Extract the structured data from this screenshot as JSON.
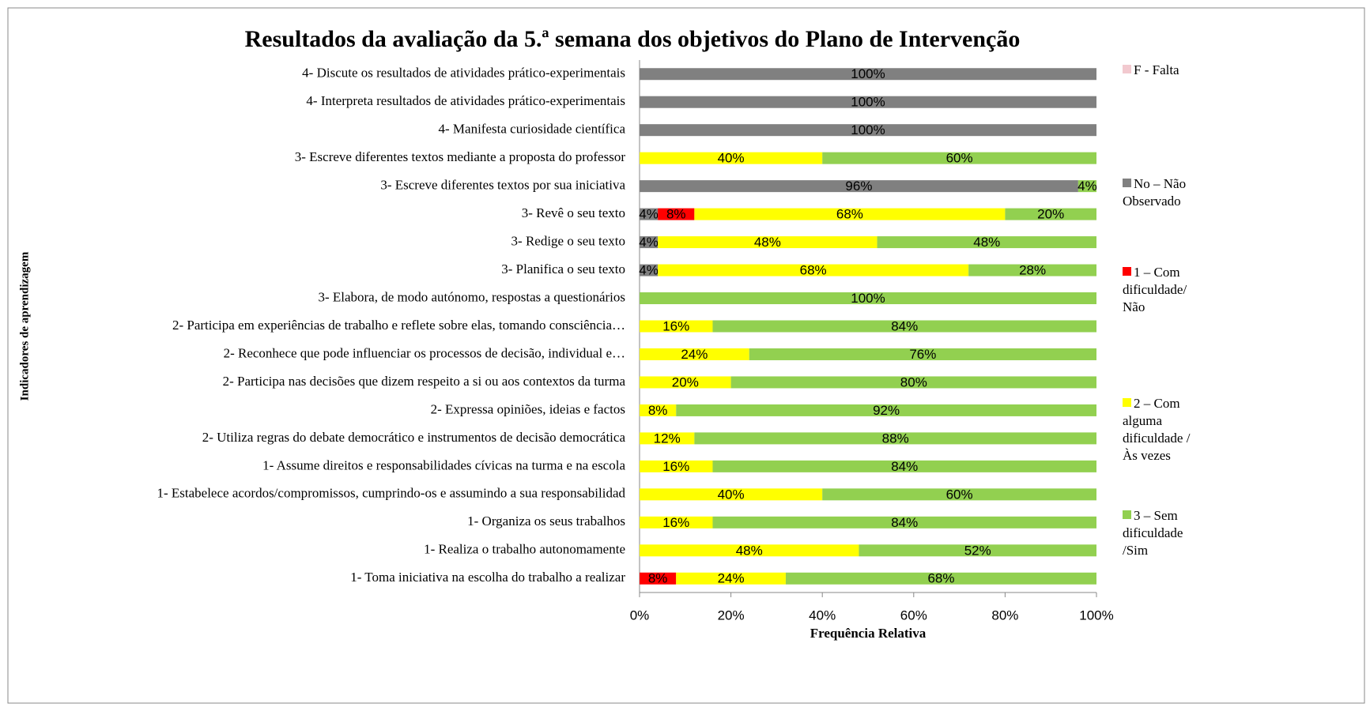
{
  "chart_data": {
    "type": "stacked-barh",
    "title": "Resultados da avaliação da 5.ª semana dos objetivos do Plano de Intervenção",
    "xlabel": "Frequência Relativa",
    "ylabel": "Indicadores de aprendizagem",
    "categories": [
      "4- Discute os resultados de atividades prático-experimentais",
      "4- Interpreta resultados de atividades prático-experimentais",
      "4- Manifesta curiosidade científica",
      "3- Escreve diferentes textos mediante a proposta do professor",
      "3- Escreve diferentes textos por sua iniciativa",
      "3- Revê o seu texto",
      "3- Redige o seu texto",
      "3- Planifica o seu texto",
      "3- Elabora, de modo autónomo, respostas a questionários",
      "2- Participa em experiências de trabalho e reflete sobre elas, tomando consciência…",
      "2- Reconhece que pode influenciar os processos de decisão, individual e…",
      "2- Participa nas decisões que dizem respeito a si ou aos contextos da turma",
      "2- Expressa opiniões, ideias e factos",
      "2- Utiliza regras do debate democrático e instrumentos de decisão democrática",
      "1- Assume direitos e responsabilidades cívicas na turma e na escola",
      "1- Estabelece acordos/compromissos, cumprindo-os e assumindo a sua responsabilidad",
      "1- Organiza os seus trabalhos",
      "1- Realiza o trabalho autonomamente",
      "1- Toma iniciativa na escolha do trabalho a realizar"
    ],
    "series": [
      {
        "name": "F - Falta",
        "color": "#f2c9cf",
        "values": [
          0,
          0,
          0,
          0,
          0,
          0,
          0,
          0,
          0,
          0,
          0,
          0,
          0,
          0,
          0,
          0,
          0,
          0,
          0
        ],
        "value_labels": [
          null,
          null,
          null,
          null,
          null,
          null,
          null,
          null,
          null,
          null,
          null,
          null,
          null,
          null,
          null,
          null,
          null,
          null,
          null
        ]
      },
      {
        "name": "No – Não Observado",
        "color": "#808080",
        "values": [
          100,
          100,
          100,
          0,
          96,
          4,
          4,
          4,
          0,
          0,
          0,
          0,
          0,
          0,
          0,
          0,
          0,
          0,
          0
        ],
        "value_labels": [
          "100%",
          "100%",
          "100%",
          null,
          "96%",
          "4%",
          "4%",
          "4%",
          null,
          null,
          null,
          null,
          null,
          null,
          null,
          null,
          null,
          null,
          null
        ]
      },
      {
        "name": "1 – Com dificuldade/ Não",
        "color": "#ff0000",
        "values": [
          0,
          0,
          0,
          0,
          0,
          8,
          0,
          0,
          0,
          0,
          0,
          0,
          0,
          0,
          0,
          0,
          0,
          0,
          8
        ],
        "value_labels": [
          null,
          null,
          null,
          null,
          null,
          "8%",
          null,
          null,
          null,
          null,
          null,
          null,
          null,
          null,
          null,
          null,
          null,
          null,
          "8%"
        ]
      },
      {
        "name": "2 – Com alguma dificuldade / Às vezes",
        "color": "#ffff00",
        "values": [
          0,
          0,
          0,
          40,
          0,
          68,
          48,
          68,
          0,
          16,
          24,
          20,
          8,
          12,
          16,
          40,
          16,
          48,
          24
        ],
        "value_labels": [
          null,
          null,
          null,
          "40%",
          null,
          "68%",
          "48%",
          "68%",
          null,
          "16%",
          "24%",
          "20%",
          "8%",
          "12%",
          "16%",
          "40%",
          "16%",
          "48%",
          "24%"
        ]
      },
      {
        "name": "3 – Sem dificuldade /Sim",
        "color": "#92d050",
        "values": [
          0,
          0,
          0,
          60,
          4,
          20,
          48,
          28,
          100,
          84,
          76,
          80,
          92,
          88,
          84,
          60,
          84,
          52,
          68
        ],
        "value_labels": [
          null,
          null,
          null,
          "60%",
          "4%",
          "20%",
          "48%",
          "28%",
          "100%",
          "84%",
          "76%",
          "80%",
          "92%",
          "88%",
          "84%",
          "60%",
          "84%",
          "52%",
          "68%"
        ]
      }
    ],
    "xlim": [
      0,
      100
    ],
    "xticks": [
      {
        "value": 0,
        "label": "0%"
      },
      {
        "value": 20,
        "label": "20%"
      },
      {
        "value": 40,
        "label": "40%"
      },
      {
        "value": 60,
        "label": "60%"
      },
      {
        "value": 80,
        "label": "80%"
      },
      {
        "value": 100,
        "label": "100%"
      }
    ],
    "legend": "right"
  }
}
